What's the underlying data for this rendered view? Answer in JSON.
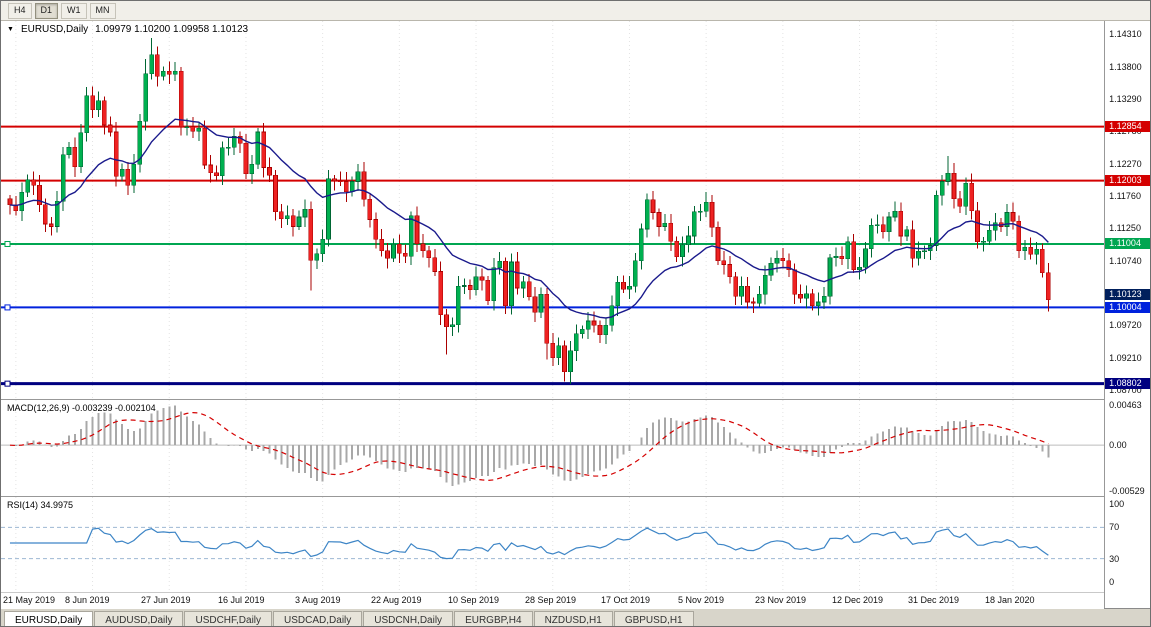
{
  "toolbar": {
    "buttons": [
      "H4",
      "D1",
      "W1",
      "MN"
    ],
    "active": "D1"
  },
  "chart_header": {
    "symbol_label": "EURUSD,Daily",
    "ohlc": "1.09979 1.10200 1.09958 1.10123",
    "collapse_icon": "▼"
  },
  "chart_data": {
    "type": "candlestick",
    "symbol": "EURUSD",
    "timeframe": "Daily",
    "title": "EURUSD,Daily",
    "first_open": 1.1172,
    "closes": [
      1.1162,
      1.1153,
      1.1182,
      1.1202,
      1.1193,
      1.1162,
      1.1132,
      1.1128,
      1.1168,
      1.1241,
      1.1253,
      1.1222,
      1.1276,
      1.1334,
      1.1312,
      1.1326,
      1.1288,
      1.1277,
      1.1207,
      1.1218,
      1.1193,
      1.1226,
      1.1294,
      1.1369,
      1.1399,
      1.1365,
      1.1373,
      1.1368,
      1.1373,
      1.1285,
      1.1285,
      1.1278,
      1.1283,
      1.1225,
      1.1213,
      1.1208,
      1.1252,
      1.1253,
      1.127,
      1.1259,
      1.1211,
      1.1226,
      1.1277,
      1.1221,
      1.1209,
      1.1151,
      1.114,
      1.1145,
      1.1128,
      1.1143,
      1.1155,
      1.1075,
      1.1085,
      1.1108,
      1.1203,
      1.12,
      1.1199,
      1.1183,
      1.1199,
      1.1214,
      1.1171,
      1.1139,
      1.1108,
      1.109,
      1.1078,
      1.11,
      1.1086,
      1.1081,
      1.1145,
      1.1101,
      1.109,
      1.1079,
      1.1057,
      1.0989,
      1.097,
      1.0973,
      1.1034,
      1.1035,
      1.1028,
      1.1049,
      1.1043,
      1.1011,
      1.1063,
      1.1073,
      1.1003,
      1.1072,
      1.1031,
      1.1041,
      1.1017,
      1.0993,
      1.1021,
      1.0944,
      1.0921,
      1.094,
      1.0899,
      1.0932,
      1.0959,
      1.0966,
      1.0979,
      1.0972,
      1.0957,
      1.0972,
      1.1003,
      1.104,
      1.1029,
      1.1034,
      1.1074,
      1.1124,
      1.117,
      1.115,
      1.1128,
      1.1133,
      1.1105,
      1.108,
      1.1099,
      1.1113,
      1.1151,
      1.1152,
      1.1166,
      1.1127,
      1.1074,
      1.1068,
      1.1049,
      1.1018,
      1.1034,
      1.1009,
      1.1007,
      1.1021,
      1.1051,
      1.107,
      1.1078,
      1.1074,
      1.106,
      1.1021,
      1.1015,
      1.1022,
      1.1003,
      1.1009,
      1.1018,
      1.1079,
      1.1081,
      1.1077,
      1.1104,
      1.106,
      1.1064,
      1.1093,
      1.113,
      1.1131,
      1.112,
      1.1143,
      1.1152,
      1.1113,
      1.1123,
      1.1078,
      1.1089,
      1.109,
      1.1098,
      1.1177,
      1.1199,
      1.1212,
      1.1172,
      1.116,
      1.1196,
      1.1153,
      1.1104,
      1.1105,
      1.1122,
      1.1134,
      1.1128,
      1.115,
      1.1136,
      1.109,
      1.1095,
      1.1084,
      1.1092,
      1.1055,
      1.10123
    ],
    "wick": 0.0016,
    "high_overrides": {
      "13": 1.1348,
      "23": 1.1392,
      "24": 1.1425,
      "25": 1.1412,
      "108": 1.118,
      "157": 1.1185,
      "159": 1.1239
    },
    "low_overrides": {
      "51": 1.1027,
      "74": 1.0926,
      "91": 1.0918,
      "95": 1.088,
      "176": 1.0994
    },
    "x_labels": [
      "21 May 2019",
      "8 Jun 2019",
      "27 Jun 2019",
      "16 Jul 2019",
      "3 Aug 2019",
      "22 Aug 2019",
      "10 Sep 2019",
      "28 Sep 2019",
      "17 Oct 2019",
      "5 Nov 2019",
      "23 Nov 2019",
      "12 Dec 2019",
      "31 Dec 2019",
      "18 Jan 2020"
    ],
    "label_start_index": 1,
    "label_every": 13,
    "y_ticks": [
      "1.14310",
      "1.13800",
      "1.13290",
      "1.12780",
      "1.12270",
      "1.11760",
      "1.11250",
      "1.10740",
      "1.10230",
      "1.09720",
      "1.09210",
      "1.08700"
    ],
    "y_min": 1.0856,
    "y_max": 1.1452,
    "grid": "vertical-dotted",
    "levels": [
      {
        "value": 1.12854,
        "label": "1.12854",
        "color": "#d40000",
        "width": 2,
        "handle": false
      },
      {
        "value": 1.12003,
        "label": "1.12003",
        "color": "#d40000",
        "width": 2,
        "handle": false
      },
      {
        "value": 1.11004,
        "label": "1.11004",
        "color": "#00a651",
        "width": 2,
        "handle": true
      },
      {
        "value": 1.10004,
        "label": "1.10004",
        "color": "#0022dd",
        "width": 2,
        "handle": true
      },
      {
        "value": 1.08802,
        "label": "1.08802",
        "color": "#000080",
        "width": 3,
        "handle": true
      }
    ],
    "current_price": {
      "value": 1.10123,
      "label": "1.10123",
      "color": "#001f5c",
      "dy": -5
    },
    "ma": {
      "period": 20,
      "color": "#1a1a8c"
    },
    "candle_colors": {
      "up_fill": "#00b050",
      "up_stroke": "#006633",
      "down_fill": "#ee2222",
      "down_stroke": "#aa0000"
    },
    "indicators": {
      "macd": {
        "label": "MACD(12,26,9) -0.003239 -0.002104",
        "fast": 12,
        "slow": 26,
        "signal": 9,
        "value": -0.003239,
        "signal_value": -0.002104,
        "ticks": [
          "0.00463",
          "0.00",
          "-0.00529"
        ],
        "tick_values": [
          0.00463,
          0,
          -0.00529
        ],
        "histogram_color": "#a8a8a8",
        "signal_color": "#d40000"
      },
      "rsi": {
        "label": "RSI(14) 34.9975",
        "period": 14,
        "value": 34.9975,
        "ticks": [
          "100",
          "70",
          "30",
          "0"
        ],
        "tick_values": [
          100,
          70,
          30,
          0
        ],
        "levels": [
          70,
          30
        ],
        "line_color": "#3d85c6",
        "level_color": "#9db8d2"
      }
    }
  },
  "bottom_tabs": {
    "active": "EURUSD,Daily",
    "tabs": [
      "EURUSD,Daily",
      "AUDUSD,Daily",
      "USDCHF,Daily",
      "USDCAD,Daily",
      "USDCNH,Daily",
      "EURGBP,H4",
      "NZDUSD,H1",
      "GBPUSD,H1"
    ]
  }
}
